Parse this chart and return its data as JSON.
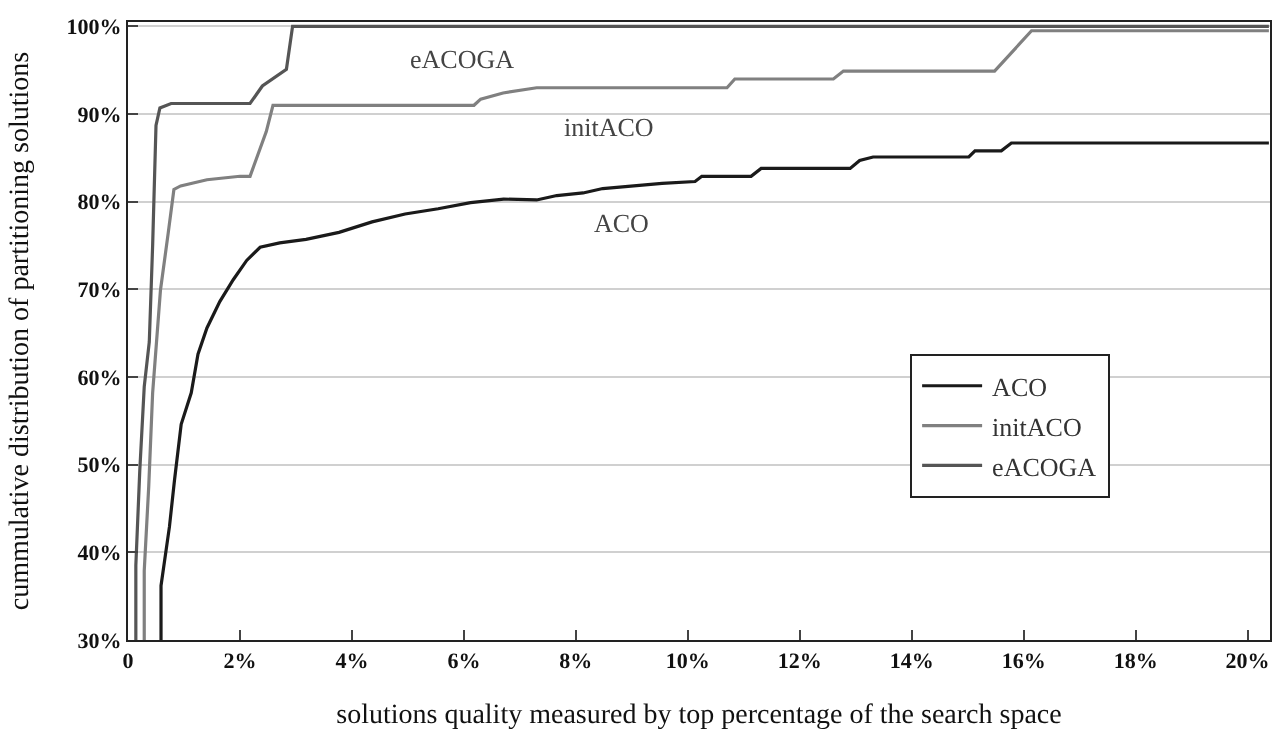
{
  "chart_data": {
    "type": "line",
    "xlabel": "solutions quality measured by top percentage of the search space",
    "ylabel": "cummulative distribution of partitioning solutions",
    "xlim": [
      0,
      20.4
    ],
    "ylim": [
      30,
      100.5
    ],
    "xticks": [
      {
        "value": 0,
        "label": "0"
      },
      {
        "value": 2,
        "label": "2%"
      },
      {
        "value": 4,
        "label": "4%"
      },
      {
        "value": 6,
        "label": "6%"
      },
      {
        "value": 8,
        "label": "8%"
      },
      {
        "value": 10,
        "label": "10%"
      },
      {
        "value": 12,
        "label": "12%"
      },
      {
        "value": 14,
        "label": "14%"
      },
      {
        "value": 16,
        "label": "16%"
      },
      {
        "value": 18,
        "label": "18%"
      },
      {
        "value": 20,
        "label": "20%"
      }
    ],
    "yticks": [
      {
        "value": 30,
        "label": "30%"
      },
      {
        "value": 40,
        "label": "40%"
      },
      {
        "value": 50,
        "label": "50%"
      },
      {
        "value": 60,
        "label": "60%"
      },
      {
        "value": 70,
        "label": "70%"
      },
      {
        "value": 80,
        "label": "80%"
      },
      {
        "value": 90,
        "label": "90%"
      },
      {
        "value": 100,
        "label": "100%"
      }
    ],
    "grid": "y",
    "legend": "bottom right",
    "marker": "none",
    "line_style": "solid",
    "series": [
      {
        "name": "ACO",
        "color": "#1a1a1a",
        "x": [
          0.59,
          0.59,
          0.74,
          0.83,
          0.95,
          1.13,
          1.25,
          1.41,
          1.64,
          1.88,
          2.12,
          2.36,
          2.71,
          3.18,
          3.77,
          4.36,
          4.95,
          5.54,
          6.12,
          6.71,
          7.3,
          7.66,
          8.13,
          8.48,
          9.54,
          10.13,
          10.25,
          11.13,
          11.31,
          12.9,
          13.07,
          13.31,
          15.02,
          15.13,
          15.6,
          15.78,
          20.38
        ],
        "values": [
          30,
          36.2,
          42.9,
          48.2,
          54.6,
          58.2,
          62.6,
          65.6,
          68.6,
          71.1,
          73.3,
          74.8,
          75.3,
          75.7,
          76.5,
          77.7,
          78.6,
          79.2,
          79.9,
          80.3,
          80.2,
          80.7,
          81,
          81.5,
          82.1,
          82.3,
          82.9,
          82.9,
          83.8,
          83.8,
          84.7,
          85.1,
          85.1,
          85.8,
          85.8,
          86.7,
          86.7
        ]
      },
      {
        "name": "initACO",
        "color": "#808080",
        "x": [
          0.29,
          0.29,
          0.37,
          0.44,
          0.58,
          0.72,
          0.82,
          0.94,
          1.41,
          2.0,
          2.18,
          2.47,
          2.59,
          6.18,
          6.3,
          6.7,
          7.3,
          10.7,
          10.84,
          12.6,
          12.78,
          15.48,
          16.14,
          20.38
        ],
        "values": [
          30,
          37.9,
          47.5,
          58.2,
          69.9,
          76.5,
          81.4,
          81.8,
          82.5,
          82.9,
          82.9,
          88,
          91,
          91,
          91.7,
          92.4,
          93,
          93,
          94,
          94,
          94.9,
          94.9,
          99.5,
          99.5
        ]
      },
      {
        "name": "eACOGA",
        "color": "#555555",
        "x": [
          0.14,
          0.14,
          0.21,
          0.29,
          0.38,
          0.44,
          0.5,
          0.57,
          0.77,
          2.18,
          2.4,
          2.83,
          2.94,
          20.38
        ],
        "values": [
          30,
          38.5,
          49.3,
          58.9,
          64,
          75,
          88.7,
          90.7,
          91.2,
          91.2,
          93.2,
          95.1,
          100,
          100
        ]
      }
    ],
    "annotations": [
      "eACOGA",
      "initACO",
      "ACO"
    ]
  }
}
